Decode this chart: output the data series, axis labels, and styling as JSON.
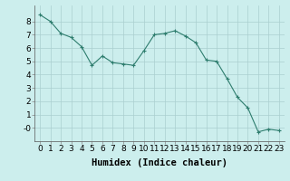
{
  "x": [
    0,
    1,
    2,
    3,
    4,
    5,
    6,
    7,
    8,
    9,
    10,
    11,
    12,
    13,
    14,
    15,
    16,
    17,
    18,
    19,
    20,
    21,
    22,
    23
  ],
  "y": [
    8.5,
    8.0,
    7.1,
    6.8,
    6.1,
    4.7,
    5.4,
    4.9,
    4.8,
    4.7,
    5.8,
    7.0,
    7.1,
    7.3,
    6.9,
    6.4,
    5.1,
    5.0,
    3.7,
    2.3,
    1.5,
    -0.3,
    -0.1,
    -0.2
  ],
  "line_color": "#2e7d6e",
  "marker": "+",
  "marker_size": 3,
  "bg_color": "#cceeed",
  "grid_color": "#aacfcf",
  "xlabel": "Humidex (Indice chaleur)",
  "xlim": [
    -0.5,
    23.5
  ],
  "ylim": [
    -1.0,
    9.2
  ],
  "yticks": [
    0,
    1,
    2,
    3,
    4,
    5,
    6,
    7,
    8
  ],
  "ytick_labels": [
    "-0",
    "1",
    "2",
    "3",
    "4",
    "5",
    "6",
    "7",
    "8"
  ],
  "xticks": [
    0,
    1,
    2,
    3,
    4,
    5,
    6,
    7,
    8,
    9,
    10,
    11,
    12,
    13,
    14,
    15,
    16,
    17,
    18,
    19,
    20,
    21,
    22,
    23
  ],
  "font_size": 6.5,
  "label_font_size": 7.5
}
